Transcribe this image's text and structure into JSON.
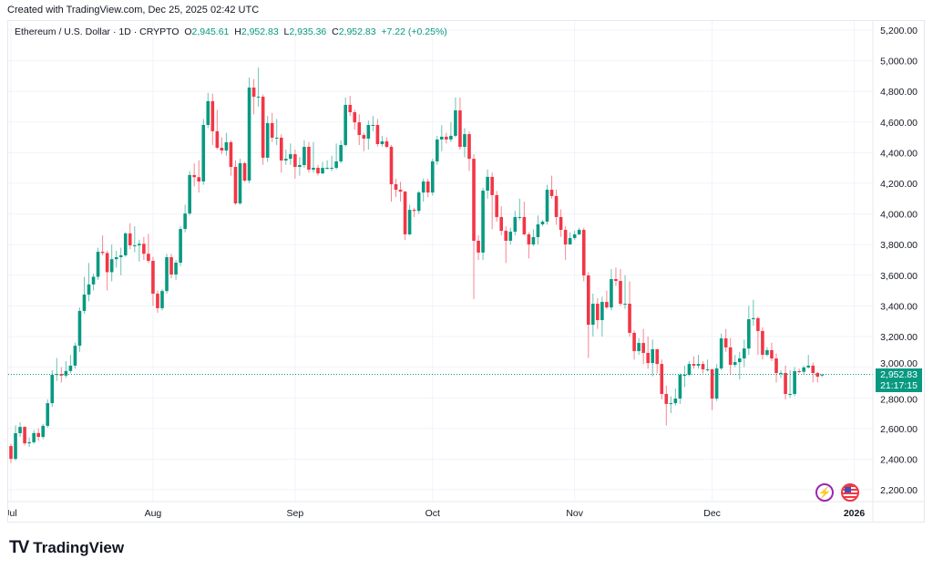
{
  "header": {
    "created": "Created with TradingView.com, Dec 25, 2025 02:42 UTC"
  },
  "legend": {
    "symbol": "Ethereum / U.S. Dollar · 1D · CRYPTO",
    "o_label": "O",
    "o_value": "2,945.61",
    "h_label": "H",
    "h_value": "2,952.83",
    "l_label": "L",
    "l_value": "2,935.36",
    "c_label": "C",
    "c_value": "2,952.83",
    "change": "+7.22 (+0.25%)"
  },
  "price_tag": {
    "price": "2,952.83",
    "countdown": "21:17:15"
  },
  "footer": {
    "logo": "TV",
    "brand": "TradingView"
  },
  "colors": {
    "up": "#089981",
    "down": "#f23645",
    "grid": "#f0f3fa"
  },
  "chart_data": {
    "type": "candlestick",
    "title": "Ethereum / U.S. Dollar · 1D · CRYPTO",
    "ylim": [
      2200,
      5200
    ],
    "last_price": 2952.83,
    "y_ticks": [
      2200,
      2400,
      2600,
      2800,
      3000,
      3200,
      3400,
      3600,
      3800,
      4000,
      4200,
      4400,
      4600,
      4800,
      5000,
      5200
    ],
    "y_tick_labels": [
      "2,200.00",
      "2,400.00",
      "2,600.00",
      "2,800.00",
      "3,000.00",
      "3,200.00",
      "3,400.00",
      "3,600.00",
      "3,800.00",
      "4,000.00",
      "4,200.00",
      "4,400.00",
      "4,600.00",
      "4,800.00",
      "5,000.00",
      "5,200.00"
    ],
    "x_ticks": [
      {
        "label": "Jul",
        "index": 0
      },
      {
        "label": "Aug",
        "index": 31
      },
      {
        "label": "Sep",
        "index": 62
      },
      {
        "label": "Oct",
        "index": 92
      },
      {
        "label": "Nov",
        "index": 123
      },
      {
        "label": "Dec",
        "index": 153
      },
      {
        "label": "2026",
        "index": 184
      }
    ],
    "start_date": "2025-07-01",
    "ohlc": [
      [
        2485,
        2500,
        2375,
        2402
      ],
      [
        2402,
        2620,
        2390,
        2569
      ],
      [
        2569,
        2640,
        2545,
        2610
      ],
      [
        2610,
        2615,
        2490,
        2503
      ],
      [
        2503,
        2540,
        2480,
        2510
      ],
      [
        2510,
        2590,
        2500,
        2570
      ],
      [
        2570,
        2600,
        2520,
        2545
      ],
      [
        2545,
        2630,
        2530,
        2617
      ],
      [
        2617,
        2790,
        2605,
        2765
      ],
      [
        2765,
        2980,
        2740,
        2950
      ],
      [
        2950,
        3060,
        2910,
        2955
      ],
      [
        2955,
        3000,
        2900,
        2945
      ],
      [
        2945,
        3040,
        2930,
        2975
      ],
      [
        2975,
        3080,
        2960,
        3010
      ],
      [
        3010,
        3160,
        2990,
        3140
      ],
      [
        3140,
        3390,
        3100,
        3367
      ],
      [
        3367,
        3590,
        3350,
        3474
      ],
      [
        3474,
        3680,
        3430,
        3540
      ],
      [
        3540,
        3610,
        3500,
        3590
      ],
      [
        3590,
        3780,
        3570,
        3753
      ],
      [
        3753,
        3860,
        3730,
        3745
      ],
      [
        3745,
        3760,
        3500,
        3620
      ],
      [
        3620,
        3800,
        3560,
        3705
      ],
      [
        3705,
        3760,
        3650,
        3718
      ],
      [
        3718,
        3780,
        3600,
        3730
      ],
      [
        3730,
        3880,
        3720,
        3873
      ],
      [
        3873,
        3940,
        3770,
        3795
      ],
      [
        3795,
        3920,
        3750,
        3795
      ],
      [
        3795,
        3830,
        3690,
        3805
      ],
      [
        3805,
        3850,
        3700,
        3740
      ],
      [
        3740,
        3870,
        3680,
        3694
      ],
      [
        3694,
        3720,
        3400,
        3480
      ],
      [
        3480,
        3500,
        3355,
        3385
      ],
      [
        3385,
        3510,
        3370,
        3497
      ],
      [
        3497,
        3740,
        3480,
        3718
      ],
      [
        3718,
        3740,
        3580,
        3605
      ],
      [
        3605,
        3700,
        3570,
        3682
      ],
      [
        3682,
        3920,
        3660,
        3902
      ],
      [
        3902,
        4060,
        3880,
        4003
      ],
      [
        4003,
        4280,
        3990,
        4254
      ],
      [
        4254,
        4330,
        4180,
        4240
      ],
      [
        4240,
        4350,
        4140,
        4212
      ],
      [
        4212,
        4620,
        4190,
        4581
      ],
      [
        4581,
        4790,
        4560,
        4736
      ],
      [
        4736,
        4785,
        4450,
        4540
      ],
      [
        4540,
        4680,
        4420,
        4432
      ],
      [
        4432,
        4500,
        4390,
        4414
      ],
      [
        4414,
        4530,
        4380,
        4468
      ],
      [
        4468,
        4480,
        4250,
        4307
      ],
      [
        4307,
        4350,
        4060,
        4069
      ],
      [
        4069,
        4360,
        4060,
        4331
      ],
      [
        4331,
        4340,
        4210,
        4218
      ],
      [
        4218,
        4890,
        4200,
        4825
      ],
      [
        4825,
        4880,
        4650,
        4765
      ],
      [
        4765,
        4955,
        4700,
        4765
      ],
      [
        4765,
        4780,
        4320,
        4367
      ],
      [
        4367,
        4640,
        4340,
        4593
      ],
      [
        4593,
        4660,
        4470,
        4498
      ],
      [
        4498,
        4620,
        4450,
        4498
      ],
      [
        4498,
        4520,
        4270,
        4349
      ],
      [
        4349,
        4420,
        4320,
        4360
      ],
      [
        4360,
        4460,
        4320,
        4390
      ],
      [
        4390,
        4420,
        4230,
        4307
      ],
      [
        4307,
        4370,
        4250,
        4319
      ],
      [
        4319,
        4480,
        4300,
        4438
      ],
      [
        4438,
        4470,
        4270,
        4289
      ],
      [
        4289,
        4470,
        4270,
        4301
      ],
      [
        4301,
        4320,
        4250,
        4265
      ],
      [
        4265,
        4340,
        4260,
        4301
      ],
      [
        4301,
        4350,
        4290,
        4301
      ],
      [
        4301,
        4380,
        4280,
        4301
      ],
      [
        4301,
        4460,
        4290,
        4343
      ],
      [
        4343,
        4480,
        4330,
        4450
      ],
      [
        4450,
        4760,
        4440,
        4712
      ],
      [
        4712,
        4770,
        4640,
        4664
      ],
      [
        4664,
        4680,
        4550,
        4598
      ],
      [
        4598,
        4650,
        4450,
        4515
      ],
      [
        4515,
        4530,
        4410,
        4492
      ],
      [
        4492,
        4610,
        4420,
        4581
      ],
      [
        4581,
        4640,
        4540,
        4581
      ],
      [
        4581,
        4620,
        4440,
        4456
      ],
      [
        4456,
        4510,
        4440,
        4474
      ],
      [
        4474,
        4500,
        4430,
        4438
      ],
      [
        4438,
        4450,
        4080,
        4194
      ],
      [
        4194,
        4230,
        4110,
        4158
      ],
      [
        4158,
        4210,
        4080,
        4146
      ],
      [
        4146,
        4150,
        3830,
        3867
      ],
      [
        3867,
        4060,
        3860,
        4027
      ],
      [
        4027,
        4040,
        3980,
        4020
      ],
      [
        4020,
        4150,
        4000,
        4140
      ],
      [
        4140,
        4230,
        4080,
        4212
      ],
      [
        4212,
        4230,
        4110,
        4140
      ],
      [
        4140,
        4360,
        4120,
        4343
      ],
      [
        4343,
        4510,
        4320,
        4486
      ],
      [
        4486,
        4580,
        4410,
        4504
      ],
      [
        4504,
        4530,
        4460,
        4486
      ],
      [
        4486,
        4600,
        4470,
        4510
      ],
      [
        4510,
        4760,
        4500,
        4676
      ],
      [
        4676,
        4760,
        4420,
        4438
      ],
      [
        4438,
        4560,
        4370,
        4521
      ],
      [
        4521,
        4540,
        4280,
        4360
      ],
      [
        4360,
        4390,
        3444,
        3825
      ],
      [
        3825,
        3860,
        3700,
        3748
      ],
      [
        3748,
        4170,
        3700,
        4152
      ],
      [
        4152,
        4290,
        4100,
        4242
      ],
      [
        4242,
        4270,
        3900,
        4123
      ],
      [
        4123,
        4150,
        3950,
        3980
      ],
      [
        3980,
        4050,
        3860,
        3890
      ],
      [
        3890,
        3920,
        3680,
        3825
      ],
      [
        3825,
        3910,
        3800,
        3884
      ],
      [
        3884,
        4020,
        3860,
        3980
      ],
      [
        3980,
        4100,
        3960,
        3980
      ],
      [
        3980,
        4080,
        3860,
        3867
      ],
      [
        3867,
        3880,
        3710,
        3801
      ],
      [
        3801,
        3900,
        3790,
        3849
      ],
      [
        3849,
        3990,
        3800,
        3932
      ],
      [
        3932,
        3960,
        3920,
        3950
      ],
      [
        3950,
        4190,
        3930,
        4158
      ],
      [
        4158,
        4250,
        4100,
        4117
      ],
      [
        4117,
        4160,
        3930,
        3980
      ],
      [
        3980,
        4030,
        3850,
        3896
      ],
      [
        3896,
        3920,
        3700,
        3801
      ],
      [
        3801,
        3880,
        3800,
        3843
      ],
      [
        3843,
        3890,
        3830,
        3867
      ],
      [
        3867,
        3910,
        3860,
        3896
      ],
      [
        3896,
        3910,
        3560,
        3599
      ],
      [
        3599,
        3620,
        3060,
        3277
      ],
      [
        3277,
        3480,
        3200,
        3414
      ],
      [
        3414,
        3450,
        3250,
        3307
      ],
      [
        3307,
        3460,
        3200,
        3426
      ],
      [
        3426,
        3500,
        3380,
        3390
      ],
      [
        3390,
        3640,
        3370,
        3575
      ],
      [
        3575,
        3650,
        3530,
        3563
      ],
      [
        3563,
        3640,
        3400,
        3414
      ],
      [
        3414,
        3600,
        3380,
        3414
      ],
      [
        3414,
        3560,
        3200,
        3224
      ],
      [
        3224,
        3240,
        3050,
        3105
      ],
      [
        3105,
        3190,
        3080,
        3158
      ],
      [
        3158,
        3250,
        3020,
        3093
      ],
      [
        3093,
        3200,
        2990,
        3027
      ],
      [
        3027,
        3180,
        2940,
        3117
      ],
      [
        3117,
        3120,
        2960,
        3021
      ],
      [
        3021,
        3050,
        2790,
        2825
      ],
      [
        2825,
        2880,
        2620,
        2760
      ],
      [
        2760,
        2810,
        2700,
        2765
      ],
      [
        2765,
        2860,
        2750,
        2795
      ],
      [
        2795,
        2960,
        2760,
        2950
      ],
      [
        2950,
        3010,
        2870,
        2950
      ],
      [
        2950,
        3040,
        2940,
        3021
      ],
      [
        3021,
        3070,
        2990,
        3010
      ],
      [
        3010,
        3080,
        2990,
        3021
      ],
      [
        3021,
        3040,
        2960,
        2986
      ],
      [
        2986,
        3050,
        2970,
        2986
      ],
      [
        2986,
        2990,
        2720,
        2795
      ],
      [
        2795,
        3020,
        2780,
        2992
      ],
      [
        2992,
        3220,
        2980,
        3188
      ],
      [
        3188,
        3250,
        3100,
        3129
      ],
      [
        3129,
        3190,
        2950,
        3015
      ],
      [
        3015,
        3080,
        3000,
        3033
      ],
      [
        3033,
        3100,
        2920,
        3057
      ],
      [
        3057,
        3180,
        3000,
        3122
      ],
      [
        3122,
        3400,
        3080,
        3313
      ],
      [
        3313,
        3440,
        3270,
        3320
      ],
      [
        3320,
        3330,
        3080,
        3236
      ],
      [
        3236,
        3260,
        3050,
        3081
      ],
      [
        3081,
        3130,
        3070,
        3111
      ],
      [
        3111,
        3160,
        3040,
        3057
      ],
      [
        3057,
        3090,
        2900,
        2962
      ],
      [
        2962,
        2980,
        2930,
        2962
      ],
      [
        2962,
        3010,
        2790,
        2825
      ],
      [
        2825,
        2980,
        2800,
        2825
      ],
      [
        2825,
        3000,
        2810,
        2974
      ],
      [
        2974,
        2990,
        2960,
        2970
      ],
      [
        2970,
        3010,
        2950,
        2998
      ],
      [
        2998,
        3080,
        2990,
        3010
      ],
      [
        3010,
        3030,
        2900,
        2962
      ],
      [
        2962,
        2970,
        2900,
        2938
      ],
      [
        2945.61,
        2952.83,
        2935.36,
        2952.83
      ]
    ]
  }
}
